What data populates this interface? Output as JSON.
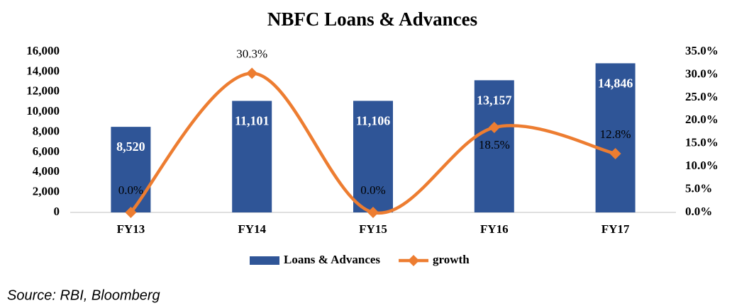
{
  "chart_data": {
    "type": "bar-line",
    "title": "NBFC Loans & Advances",
    "source": "Source: RBI, Bloomberg",
    "categories": [
      "FY13",
      "FY14",
      "FY15",
      "FY16",
      "FY17"
    ],
    "series": [
      {
        "name": "Loans & Advances",
        "type": "bar",
        "color": "#2f5597",
        "values": [
          8520,
          11101,
          11106,
          13157,
          14846
        ],
        "value_labels": [
          "8,520",
          "11,101",
          "11,106",
          "13,157",
          "14,846"
        ]
      },
      {
        "name": "growth",
        "type": "line",
        "axis": "y2",
        "color": "#ed7d31",
        "smooth": true,
        "values": [
          0,
          30.3,
          0,
          18.5,
          12.8
        ],
        "value_labels": [
          "0.0%",
          "30.3%",
          "0.0%",
          "18.5%",
          "12.8%"
        ]
      }
    ],
    "ylim": [
      0,
      16000
    ],
    "yticks": [
      0,
      {
        "value": 2000,
        "label": "2,000"
      },
      {
        "value": 4000,
        "label": "4,000"
      },
      {
        "value": 6000,
        "label": "6,000"
      },
      {
        "value": 8000,
        "label": "8,000"
      },
      {
        "value": 10000,
        "label": "10,000"
      },
      {
        "value": 12000,
        "label": "12,000"
      },
      {
        "value": 14000,
        "label": "14,000"
      },
      {
        "value": 16000,
        "label": "16,000"
      }
    ],
    "y2lim": [
      0,
      35
    ],
    "y2ticks": [
      {
        "value": 0,
        "label": "0.0%"
      },
      {
        "value": 5,
        "label": "5.0%"
      },
      {
        "value": 10,
        "label": "10.0%"
      },
      {
        "value": 15,
        "label": "15.0%"
      },
      {
        "value": 20,
        "label": "20.0%"
      },
      {
        "value": 25,
        "label": "25.0%"
      },
      {
        "value": 30,
        "label": "30.0%"
      },
      {
        "value": 35,
        "label": "35.0%"
      }
    ],
    "grid": false,
    "legend": "bottom"
  }
}
